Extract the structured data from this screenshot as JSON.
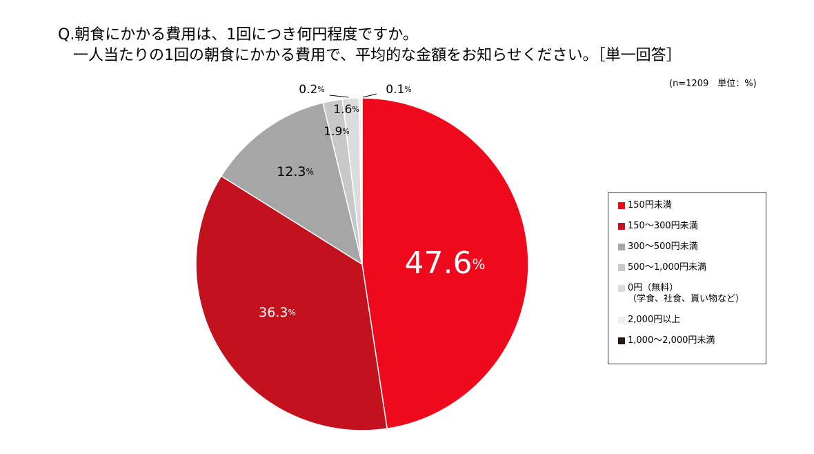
{
  "question": {
    "line1": "Q.朝食にかかる費用は、1回につき何円程度ですか。",
    "line2": "一人当たりの1回の朝食にかかる費用で、平均的な金額をお知らせください。［単一回答］"
  },
  "note": "(n=1209　単位：%)",
  "chart_data": {
    "type": "pie",
    "title": "",
    "unit": "%",
    "slices": [
      {
        "name": "150円未満",
        "value": 47.6,
        "color": "#ee0a1c",
        "label": "47.6"
      },
      {
        "name": "150～300円未満",
        "value": 36.3,
        "color": "#c4111e",
        "label": "36.3"
      },
      {
        "name": "300～500円未満",
        "value": 12.3,
        "color": "#a6a6a6",
        "label": "12.3"
      },
      {
        "name": "500～1,000円未満",
        "value": 1.9,
        "color": "#c8c8c8",
        "label": "1.9"
      },
      {
        "name": "0円（無料）\n（学食、社食、貰い物など）",
        "value": 1.6,
        "color": "#dcdcdc",
        "label": "1.6"
      },
      {
        "name": "2,000円以上",
        "value": 0.2,
        "color": "#efefef",
        "label": "0.2"
      },
      {
        "name": "1,000～2,000円未満",
        "value": 0.1,
        "color": "#231815",
        "label": "0.1"
      }
    ],
    "legend_position": "right"
  }
}
